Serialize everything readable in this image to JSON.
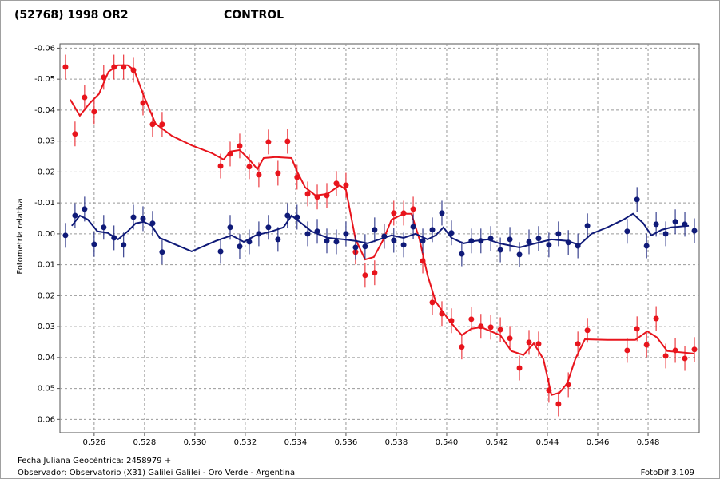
{
  "chart_data": {
    "type": "scatter",
    "y_label": "Fotometría relativa",
    "footer": [
      "Fecha Juliana Geocéntrica: 2458979 +",
      "Observador: Observatorio (X31) Galilei Galilei - Oro Verde - Argentina",
      "FotoDif 3.109"
    ],
    "xlim": [
      0.52464,
      0.55003
    ],
    "ylim": [
      -0.0614,
      0.0643
    ],
    "y_inverted": true,
    "grid": true,
    "xticks": [
      0.526,
      0.528,
      {
        "value": 0.53,
        "label": "0.530"
      },
      0.532,
      0.534,
      0.536,
      0.538,
      {
        "value": 0.54,
        "label": "0.540"
      },
      0.542,
      0.544,
      0.546,
      0.548
    ],
    "yticks": [
      -0.06,
      -0.05,
      -0.04,
      -0.03,
      -0.02,
      -0.01,
      {
        "value": 0,
        "label": "0.00"
      },
      0.01,
      0.02,
      0.03,
      0.04,
      0.05,
      0.06
    ],
    "series": [
      {
        "name": "(52768) 1998 OR2",
        "color": "#e8141c",
        "error": 0.004,
        "x": [
          0.52486,
          0.52524,
          0.52562,
          0.526,
          0.52638,
          0.52679,
          0.52717,
          0.52756,
          0.52794,
          0.52832,
          0.5287,
          0.53102,
          0.5314,
          0.53178,
          0.53216,
          0.53254,
          0.53292,
          0.5333,
          0.53368,
          0.53406,
          0.53448,
          0.53486,
          0.53524,
          0.53562,
          0.536,
          0.53638,
          0.53676,
          0.53714,
          0.53752,
          0.5379,
          0.53829,
          0.53867,
          0.53905,
          0.53943,
          0.53981,
          0.54019,
          0.5406,
          0.54098,
          0.54136,
          0.54175,
          0.54213,
          0.54251,
          0.54289,
          0.54327,
          0.54365,
          0.54406,
          0.54444,
          0.54483,
          0.54521,
          0.54559,
          0.54717,
          0.54756,
          0.54794,
          0.54832,
          0.5487,
          0.54908,
          0.54946,
          0.54984
        ],
        "values": [
          -0.0539,
          -0.0323,
          -0.0441,
          -0.0395,
          -0.0506,
          -0.0539,
          -0.0539,
          -0.0529,
          -0.0423,
          -0.0354,
          -0.0354,
          -0.0219,
          -0.0258,
          -0.0284,
          -0.0217,
          -0.0191,
          -0.0297,
          -0.0196,
          -0.0299,
          -0.0183,
          -0.0129,
          -0.0119,
          -0.0124,
          -0.0163,
          -0.0157,
          0.0059,
          0.0134,
          0.0126,
          0.0008,
          -0.0067,
          -0.0067,
          -0.008,
          0.0088,
          0.0222,
          0.0258,
          0.0281,
          0.0366,
          0.0276,
          0.0299,
          0.0302,
          0.031,
          0.0338,
          0.0434,
          0.0351,
          0.0356,
          0.0506,
          0.055,
          0.0488,
          0.0356,
          0.0312,
          0.0377,
          0.0307,
          0.0359,
          0.0274,
          0.0395,
          0.0377,
          0.0403,
          0.0374
        ],
        "fit_x": [
          0.52505,
          0.52543,
          0.52581,
          0.52619,
          0.52657,
          0.52695,
          0.52733,
          0.52759,
          0.52797,
          0.52844,
          0.52908,
          0.52987,
          0.53067,
          0.53114,
          0.5314,
          0.53178,
          0.53216,
          0.53248,
          0.53273,
          0.53321,
          0.53384,
          0.53406,
          0.53438,
          0.53479,
          0.53527,
          0.53575,
          0.536,
          0.53638,
          0.53676,
          0.53711,
          0.53749,
          0.53781,
          0.53829,
          0.5386,
          0.53892,
          0.53924,
          0.53956,
          0.53987,
          0.54019,
          0.5406,
          0.54098,
          0.54137,
          0.54175,
          0.54213,
          0.54257,
          0.54305,
          0.54346,
          0.54384,
          0.54416,
          0.54448,
          0.54479,
          0.54511,
          0.54549,
          0.54638,
          0.54749,
          0.54797,
          0.54835,
          0.54876,
          0.54981
        ],
        "fit_values": [
          -0.0434,
          -0.0382,
          -0.0421,
          -0.0452,
          -0.0524,
          -0.0545,
          -0.0545,
          -0.0529,
          -0.0446,
          -0.0356,
          -0.0317,
          -0.0286,
          -0.0261,
          -0.024,
          -0.0266,
          -0.0271,
          -0.024,
          -0.0209,
          -0.0245,
          -0.0248,
          -0.0245,
          -0.0201,
          -0.015,
          -0.0124,
          -0.0129,
          -0.0157,
          -0.0142,
          0.0018,
          0.0083,
          0.0075,
          0.0018,
          -0.0046,
          -0.0065,
          -0.0065,
          0.0018,
          0.0134,
          0.0219,
          0.0255,
          0.0289,
          0.0328,
          0.0307,
          0.0302,
          0.0315,
          0.0328,
          0.0379,
          0.0392,
          0.0354,
          0.0405,
          0.0521,
          0.0514,
          0.0483,
          0.0405,
          0.0341,
          0.0343,
          0.0343,
          0.0315,
          0.0335,
          0.0379,
          0.0387
        ]
      },
      {
        "name": "CONTROL",
        "color": "#0f1a78",
        "error": 0.004,
        "x": [
          0.52486,
          0.52524,
          0.52562,
          0.526,
          0.52638,
          0.52679,
          0.52717,
          0.52756,
          0.52794,
          0.52832,
          0.5287,
          0.53102,
          0.5314,
          0.53178,
          0.53216,
          0.53254,
          0.53292,
          0.5333,
          0.53368,
          0.53406,
          0.53448,
          0.53486,
          0.53524,
          0.53562,
          0.536,
          0.53638,
          0.53676,
          0.53714,
          0.53752,
          0.5379,
          0.53829,
          0.53867,
          0.53905,
          0.53943,
          0.53981,
          0.54019,
          0.5406,
          0.54098,
          0.54136,
          0.54175,
          0.54213,
          0.54251,
          0.54289,
          0.54327,
          0.54365,
          0.54406,
          0.54444,
          0.54483,
          0.54521,
          0.54559,
          0.54717,
          0.54756,
          0.54794,
          0.54832,
          0.5487,
          0.54908,
          0.54946,
          0.54984
        ],
        "values": [
          0.0005,
          -0.0059,
          -0.008,
          0.0034,
          -0.0021,
          0.0013,
          0.0036,
          -0.0054,
          -0.0049,
          -0.0034,
          0.0059,
          0.0057,
          -0.0021,
          0.0041,
          0.0026,
          0,
          -0.0021,
          0.0018,
          -0.0059,
          -0.0054,
          0,
          -0.0008,
          0.0023,
          0.0026,
          0,
          0.0044,
          0.0041,
          -0.0013,
          0.0008,
          0.0021,
          0.0036,
          -0.0023,
          0.0023,
          -0.0013,
          -0.0067,
          -0.0003,
          0.0065,
          0.0023,
          0.0023,
          0.0015,
          0.0052,
          0.0018,
          0.0067,
          0.0026,
          0.0015,
          0.0036,
          0,
          0.0028,
          0.0039,
          -0.0026,
          -0.0008,
          -0.0111,
          0.0039,
          -0.0031,
          0,
          -0.0039,
          -0.0031,
          -0.001
        ],
        "fit_x": [
          0.52511,
          0.52543,
          0.52575,
          0.52613,
          0.52654,
          0.52695,
          0.52733,
          0.52765,
          0.52797,
          0.52829,
          0.5286,
          0.52987,
          0.53083,
          0.53146,
          0.53194,
          0.53241,
          0.53305,
          0.53352,
          0.53384,
          0.53416,
          0.53463,
          0.53527,
          0.5359,
          0.53638,
          0.53686,
          0.53733,
          0.53781,
          0.53829,
          0.53876,
          0.53924,
          0.53956,
          0.53987,
          0.54019,
          0.54067,
          0.54114,
          0.54162,
          0.5421,
          0.54289,
          0.54352,
          0.54416,
          0.54479,
          0.54527,
          0.54575,
          0.54638,
          0.54702,
          0.5474,
          0.54781,
          0.54813,
          0.54854,
          0.54892,
          0.54962
        ],
        "fit_values": [
          -0.0026,
          -0.0059,
          -0.0046,
          -0.0008,
          -0.0003,
          0.0018,
          -0.0008,
          -0.0034,
          -0.0039,
          -0.0026,
          0.0013,
          0.0057,
          0.0023,
          0.0005,
          0.0026,
          0.0005,
          -0.0008,
          -0.0021,
          -0.0059,
          -0.0039,
          -0.0008,
          0.0013,
          0.0018,
          0.0023,
          0.0031,
          0.0018,
          0.0005,
          0.0013,
          0,
          0.0018,
          0.0005,
          -0.0021,
          0.0013,
          0.0031,
          0.0023,
          0.0018,
          0.0031,
          0.0044,
          0.0031,
          0.0018,
          0.0023,
          0.0036,
          0,
          -0.0021,
          -0.0046,
          -0.0065,
          -0.0034,
          0.0005,
          -0.0013,
          -0.0021,
          -0.0026
        ]
      }
    ]
  }
}
